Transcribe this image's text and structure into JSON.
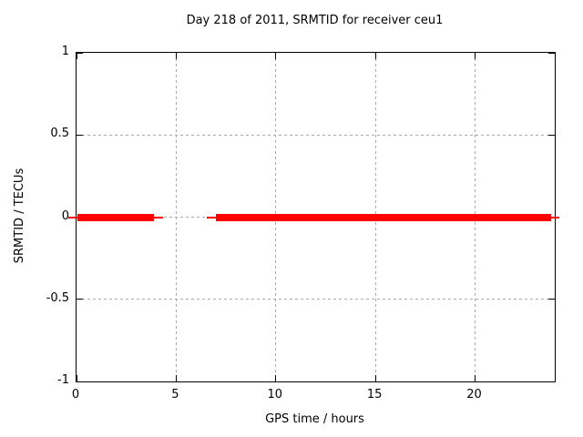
{
  "window": {
    "background": "#ffffff"
  },
  "chart_data": {
    "type": "line",
    "title": "Day 218 of 2011, SRMTID for receiver ceu1",
    "xlabel": "GPS time / hours",
    "ylabel": "SRMTID / TECUs",
    "xlim": [
      0,
      24
    ],
    "ylim": [
      -1,
      1
    ],
    "xticks": [
      0,
      5,
      10,
      15,
      20
    ],
    "xtick_labels": [
      "0",
      "5",
      "10",
      "15",
      "20"
    ],
    "yticks": [
      -1,
      -0.5,
      0,
      0.5,
      1
    ],
    "ytick_labels": [
      "-1",
      "-0.5",
      "0",
      "0.5",
      "1"
    ],
    "grid": true,
    "legend": "none",
    "colors": {
      "line": "#ff0000",
      "grid": "#aaaaaa",
      "axis": "#000000",
      "text": "#000000"
    },
    "series": [
      {
        "name": "SRMTID",
        "value": 0,
        "segments": [
          {
            "x_start": 0.05,
            "x_end": 3.9
          },
          {
            "x_start": 7.0,
            "x_end": 23.8
          }
        ]
      }
    ]
  }
}
